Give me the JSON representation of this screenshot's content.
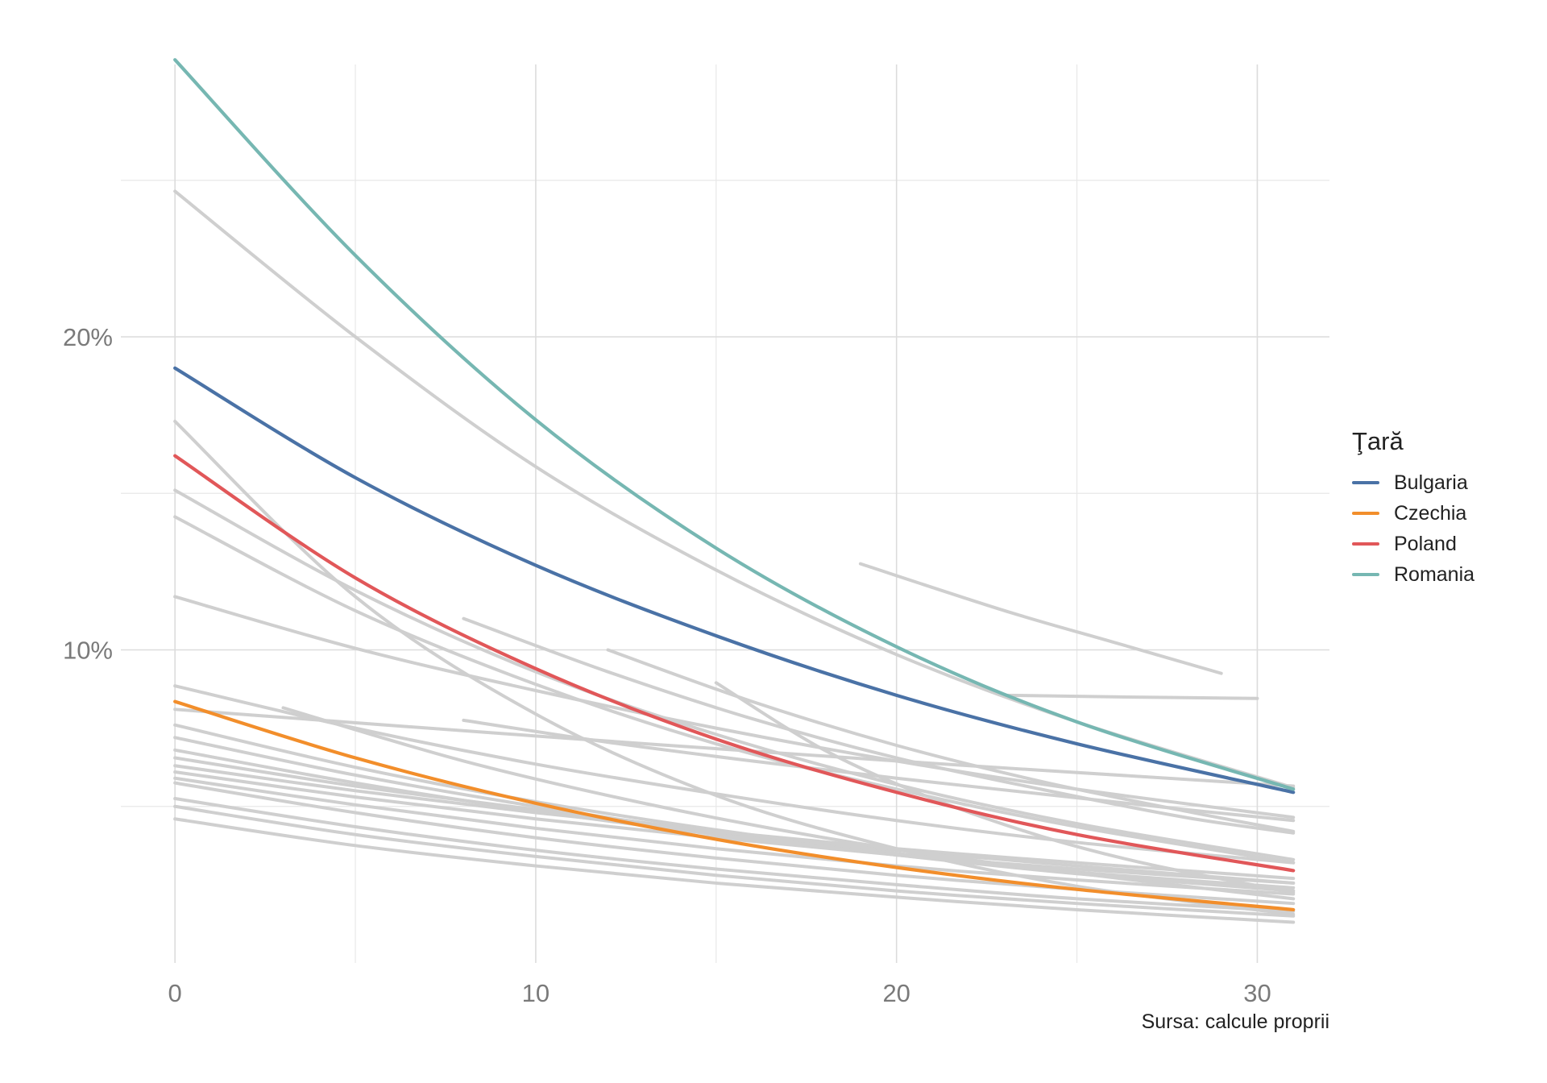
{
  "chart_data": {
    "type": "line",
    "title": "",
    "xlabel": "",
    "ylabel": "",
    "xlim": [
      -1.5,
      32
    ],
    "ylim": [
      0.0,
      0.287
    ],
    "x_ticks": [
      0,
      10,
      20,
      30
    ],
    "x_tick_labels": [
      "0",
      "10",
      "20",
      "30"
    ],
    "y_ticks": [
      0.1,
      0.2
    ],
    "y_tick_labels": [
      "10%",
      "20%"
    ],
    "grid": true,
    "legend": {
      "title": "Ţară",
      "placement": "right"
    },
    "caption": "Sursa: calcule proprii",
    "series": [
      {
        "name": "Bulgaria",
        "color": "#4a72a6",
        "x": [
          0,
          5,
          10,
          15,
          20,
          25,
          31
        ],
        "y": [
          0.19,
          0.155,
          0.127,
          0.1045,
          0.0855,
          0.07,
          0.0545
        ]
      },
      {
        "name": "Czechia",
        "color": "#f28e2b",
        "x": [
          0,
          5,
          10,
          15,
          20,
          25,
          31
        ],
        "y": [
          0.0835,
          0.0655,
          0.051,
          0.0395,
          0.0305,
          0.0235,
          0.017
        ]
      },
      {
        "name": "Poland",
        "color": "#e15759",
        "x": [
          0,
          5,
          10,
          15,
          20,
          25,
          31
        ],
        "y": [
          0.162,
          0.123,
          0.094,
          0.0715,
          0.0545,
          0.041,
          0.0295
        ]
      },
      {
        "name": "Romania",
        "color": "#76b7b2",
        "x": [
          0,
          5,
          10,
          15,
          20,
          25,
          31
        ],
        "y": [
          0.2885,
          0.226,
          0.1735,
          0.1325,
          0.101,
          0.077,
          0.0555
        ]
      }
    ],
    "other_series_color": "#cfcfcf",
    "other_series": [
      {
        "x": [
          0,
          5,
          10,
          15,
          20,
          25,
          31
        ],
        "y": [
          0.2465,
          0.2,
          0.1585,
          0.1255,
          0.0985,
          0.077,
          0.056
        ]
      },
      {
        "x": [
          0,
          5,
          10,
          15,
          20,
          25,
          31
        ],
        "y": [
          0.173,
          0.117,
          0.0795,
          0.0535,
          0.0365,
          0.0245,
          0.0155
        ]
      },
      {
        "x": [
          0,
          5,
          10,
          15,
          20,
          25,
          31
        ],
        "y": [
          0.151,
          0.119,
          0.093,
          0.073,
          0.057,
          0.0445,
          0.033
        ]
      },
      {
        "x": [
          0,
          5,
          10,
          15,
          20,
          25,
          31
        ],
        "y": [
          0.1425,
          0.1125,
          0.089,
          0.07,
          0.0555,
          0.0435,
          0.032
        ]
      },
      {
        "x": [
          0,
          5,
          10,
          15,
          20,
          25,
          31
        ],
        "y": [
          0.117,
          0.1005,
          0.087,
          0.075,
          0.0645,
          0.0555,
          0.0465
        ]
      },
      {
        "x": [
          0,
          5,
          10,
          15,
          20,
          25,
          31
        ],
        "y": [
          0.0885,
          0.075,
          0.0635,
          0.054,
          0.0455,
          0.0385,
          0.032
        ]
      },
      {
        "x": [
          0,
          10,
          20,
          31
        ],
        "y": [
          0.081,
          0.0725,
          0.0645,
          0.0565
        ]
      },
      {
        "x": [
          0,
          5,
          10,
          15,
          20,
          25,
          31
        ],
        "y": [
          0.076,
          0.0625,
          0.0515,
          0.0425,
          0.035,
          0.029,
          0.023
        ]
      },
      {
        "x": [
          0,
          5,
          10,
          15,
          20,
          25,
          31
        ],
        "y": [
          0.072,
          0.06,
          0.05,
          0.0415,
          0.0345,
          0.0285,
          0.023
        ]
      },
      {
        "x": [
          0,
          5,
          10,
          15,
          20,
          25,
          31
        ],
        "y": [
          0.068,
          0.0575,
          0.0485,
          0.041,
          0.0345,
          0.029,
          0.024
        ]
      },
      {
        "x": [
          0,
          5,
          10,
          15,
          20,
          25,
          31
        ],
        "y": [
          0.0655,
          0.0565,
          0.049,
          0.042,
          0.036,
          0.031,
          0.0255
        ]
      },
      {
        "x": [
          0,
          5,
          10,
          15,
          20,
          25,
          31
        ],
        "y": [
          0.063,
          0.055,
          0.048,
          0.042,
          0.0365,
          0.032,
          0.027
        ]
      },
      {
        "x": [
          0,
          5,
          10,
          15,
          20,
          25,
          31
        ],
        "y": [
          0.061,
          0.053,
          0.046,
          0.04,
          0.0345,
          0.03,
          0.0255
        ]
      },
      {
        "x": [
          0,
          5,
          10,
          15,
          20,
          25,
          31
        ],
        "y": [
          0.059,
          0.0505,
          0.043,
          0.0365,
          0.031,
          0.0265,
          0.022
        ]
      },
      {
        "x": [
          0,
          5,
          10,
          15,
          20,
          25,
          31
        ],
        "y": [
          0.0575,
          0.048,
          0.04,
          0.0335,
          0.028,
          0.0235,
          0.019
        ]
      },
      {
        "x": [
          0,
          5,
          10,
          15,
          20,
          25,
          31
        ],
        "y": [
          0.0525,
          0.0435,
          0.036,
          0.03,
          0.025,
          0.0205,
          0.0165
        ]
      },
      {
        "x": [
          0,
          5,
          10,
          15,
          20,
          25,
          31
        ],
        "y": [
          0.05,
          0.041,
          0.034,
          0.028,
          0.023,
          0.019,
          0.015
        ]
      },
      {
        "x": [
          0,
          5,
          10,
          15,
          20,
          25,
          31
        ],
        "y": [
          0.046,
          0.0375,
          0.031,
          0.0255,
          0.021,
          0.017,
          0.013
        ]
      },
      {
        "x": [
          3,
          8,
          13,
          18,
          23,
          31
        ],
        "y": [
          0.0815,
          0.0645,
          0.051,
          0.04,
          0.0315,
          0.0205
        ]
      },
      {
        "x": [
          8,
          12,
          16,
          20,
          24,
          28,
          31
        ],
        "y": [
          0.0775,
          0.0705,
          0.0645,
          0.059,
          0.054,
          0.049,
          0.0455
        ]
      },
      {
        "x": [
          8,
          12,
          16,
          20,
          24,
          28,
          31
        ],
        "y": [
          0.11,
          0.093,
          0.078,
          0.0655,
          0.0555,
          0.0465,
          0.0415
        ]
      },
      {
        "x": [
          12,
          16,
          20,
          24,
          28,
          31
        ],
        "y": [
          0.1,
          0.0835,
          0.0695,
          0.058,
          0.0485,
          0.042
        ]
      },
      {
        "x": [
          15,
          18,
          21,
          24,
          27,
          31
        ],
        "y": [
          0.0895,
          0.068,
          0.0525,
          0.0405,
          0.0315,
          0.0225
        ]
      },
      {
        "x": [
          19,
          23,
          26,
          29
        ],
        "y": [
          0.1275,
          0.1125,
          0.1025,
          0.0925
        ]
      },
      {
        "x": [
          23,
          26,
          30
        ],
        "y": [
          0.0855,
          0.085,
          0.0845
        ]
      }
    ]
  }
}
